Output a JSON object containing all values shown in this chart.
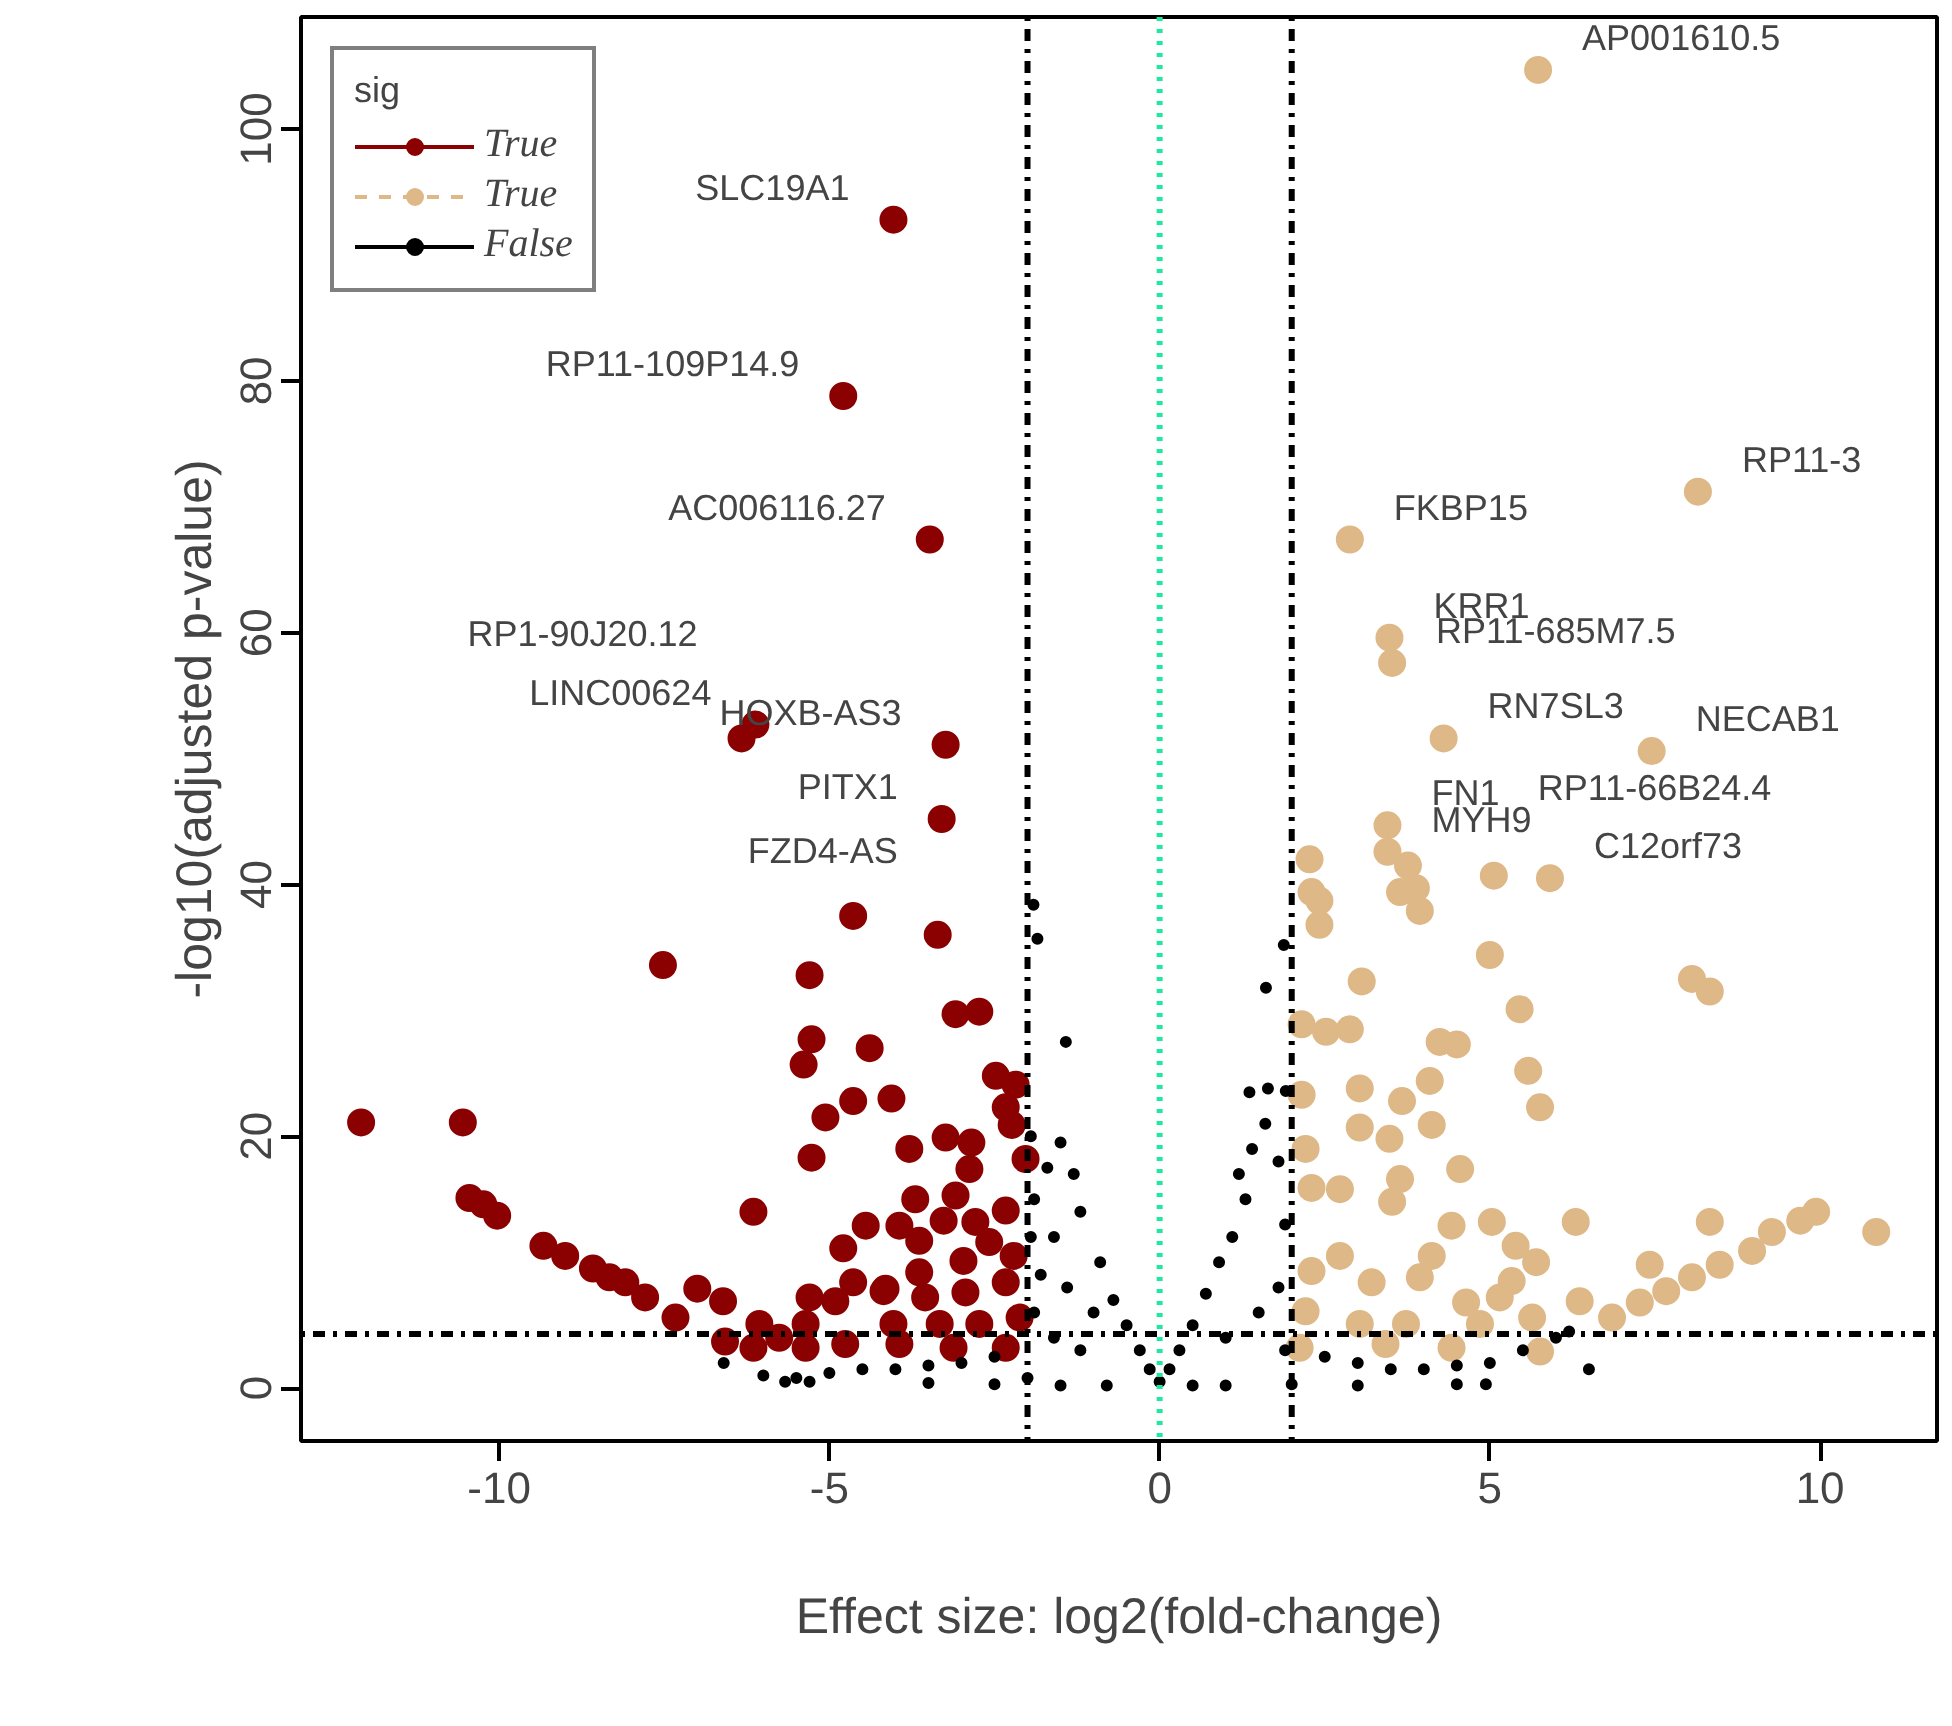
{
  "chart_data": {
    "type": "scatter",
    "xlabel": "Effect size: log2(fold-change)",
    "ylabel": "-log10(adjusted p-value)",
    "legend_title": "sig",
    "legend": "top left",
    "grid": false,
    "marker": "circle",
    "xlim": [
      -13,
      11.77
    ],
    "ylim": [
      -4.2,
      108.9
    ],
    "xticks": [
      -10,
      -5,
      0,
      5,
      10
    ],
    "yticks": [
      0,
      20,
      40,
      60,
      80,
      100
    ],
    "series": [
      {
        "name": "True",
        "color": "#8b0000",
        "line_style": "solid",
        "x": [
          -4.03,
          -4.79,
          -3.48,
          -6.33,
          -6.12,
          -3.24,
          -3.3,
          -12.09,
          -10.55,
          -10.45,
          -10.24,
          -10.03,
          -9.33,
          -9.0,
          -8.58,
          -8.33,
          -8.09,
          -7.79,
          -7.52,
          -7.33,
          -7.0,
          -6.61,
          -6.15,
          -6.06,
          -6.58,
          -5.76,
          -5.3,
          -5.27,
          -5.39,
          -5.27,
          -5.06,
          -4.64,
          -4.39,
          -4.64,
          -4.06,
          -4.79,
          -4.45,
          -5.3,
          -4.91,
          -4.64,
          -4.15,
          -5.36,
          -3.36,
          -3.09,
          -2.73,
          -2.48,
          -2.18,
          -2.33,
          -2.24,
          -3.24,
          -2.85,
          -3.79,
          -2.03,
          -2.88,
          -3.09,
          -3.7,
          -3.27,
          -2.33,
          -3.94,
          -3.64,
          -2.79,
          -2.58,
          -2.97,
          -3.64,
          -2.21,
          -3.55,
          -2.94,
          -2.33,
          -4.18,
          -4.03,
          -3.33,
          -2.73,
          -2.12,
          -2.33,
          -3.12,
          -3.94,
          -4.76,
          -6.15,
          -5.36
        ],
        "values": [
          92.8,
          78.8,
          67.4,
          51.6,
          52.7,
          51.1,
          45.2,
          21.1,
          21.1,
          15.1,
          14.6,
          13.7,
          11.3,
          10.5,
          9.5,
          8.8,
          8.4,
          7.2,
          33.6,
          5.6,
          7.9,
          6.9,
          14.0,
          5.1,
          3.7,
          4.0,
          32.8,
          27.7,
          25.7,
          18.3,
          21.5,
          37.5,
          27.0,
          22.8,
          23.0,
          11.1,
          12.9,
          7.2,
          6.9,
          8.4,
          7.9,
          5.1,
          36.0,
          29.7,
          29.9,
          24.8,
          24.1,
          22.3,
          20.9,
          19.9,
          19.5,
          19.0,
          18.2,
          17.4,
          15.3,
          15.0,
          13.3,
          14.1,
          12.9,
          11.7,
          13.2,
          11.6,
          10.1,
          9.2,
          10.5,
          7.2,
          7.6,
          8.4,
          7.7,
          5.1,
          5.1,
          5.1,
          5.6,
          3.2,
          3.2,
          3.5,
          3.5,
          3.2,
          3.2
        ]
      },
      {
        "name": "True",
        "color": "#deb887",
        "line_style": "dashed",
        "x": [
          5.73,
          8.15,
          2.88,
          3.48,
          3.52,
          4.3,
          7.45,
          3.45,
          3.45,
          3.76,
          3.88,
          5.06,
          2.27,
          2.3,
          2.42,
          2.42,
          3.64,
          3.94,
          5.91,
          5.0,
          3.06,
          5.45,
          8.06,
          8.33,
          2.15,
          2.52,
          2.88,
          4.24,
          4.5,
          5.58,
          5.76,
          4.09,
          3.03,
          2.15,
          3.67,
          3.03,
          4.12,
          3.48,
          2.21,
          4.55,
          3.64,
          2.3,
          2.73,
          3.52,
          5.03,
          6.3,
          8.33,
          4.42,
          10.85,
          9.94,
          9.7,
          9.27,
          8.97,
          8.48,
          8.06,
          7.67,
          7.27,
          6.85,
          7.42,
          6.36,
          5.64,
          5.7,
          5.39,
          5.33,
          5.15,
          4.64,
          4.12,
          3.94,
          3.21,
          2.73,
          2.3,
          2.21,
          3.03,
          3.73,
          4.85,
          2.12,
          3.42,
          4.42,
          5.76
        ],
        "values": [
          104.7,
          71.2,
          67.4,
          59.6,
          57.6,
          51.6,
          50.6,
          44.7,
          42.6,
          41.5,
          39.7,
          40.7,
          42.0,
          39.4,
          38.7,
          36.8,
          39.4,
          37.9,
          40.5,
          34.4,
          32.3,
          30.1,
          32.5,
          31.5,
          28.9,
          28.3,
          28.5,
          27.5,
          27.3,
          25.2,
          22.3,
          24.4,
          23.8,
          23.3,
          22.8,
          20.7,
          20.9,
          19.8,
          19.0,
          17.4,
          16.6,
          15.9,
          15.8,
          14.8,
          13.2,
          13.2,
          13.2,
          12.9,
          12.4,
          14.0,
          13.3,
          12.4,
          10.9,
          9.8,
          8.8,
          7.7,
          6.8,
          5.6,
          9.8,
          6.9,
          5.6,
          10.0,
          11.3,
          8.5,
          7.2,
          6.8,
          10.5,
          8.8,
          8.4,
          10.5,
          9.3,
          6.1,
          5.1,
          5.1,
          5.1,
          3.2,
          3.5,
          3.2,
          2.9
        ]
      },
      {
        "name": "False",
        "color": "#000000",
        "line_style": "solid",
        "x": [
          -1.91,
          -1.85,
          -1.42,
          -1.5,
          -1.3,
          -1.7,
          -1.2,
          -0.9,
          -1.6,
          -1.9,
          -0.7,
          -0.5,
          -0.3,
          -0.15,
          0,
          -1.0,
          -1.4,
          -1.8,
          -1.95,
          -1.95,
          -1.2,
          -1.6,
          -1.9,
          -2.5,
          -3,
          -3.5,
          -4,
          -4.5,
          -5,
          -5.5,
          -5.67,
          -6,
          -6.6,
          -5.3,
          -2.5,
          -3.5,
          -1.5,
          -0.8,
          -2,
          0.15,
          0.3,
          0.5,
          0.7,
          0.9,
          1.1,
          1.3,
          1.2,
          1.4,
          1.6,
          1.36,
          1.64,
          1.91,
          1.61,
          1.88,
          1.8,
          1.9,
          1.0,
          1.5,
          1.8,
          1.9,
          2.5,
          3,
          3.5,
          4,
          4.5,
          5,
          5.5,
          6,
          6.2,
          4.94,
          4.5,
          3,
          2,
          1,
          0.5,
          6.5
        ],
        "values": [
          38.4,
          35.7,
          27.5,
          19.5,
          17,
          17.5,
          14,
          10,
          12,
          15,
          7,
          5,
          3,
          1.5,
          0.5,
          6,
          8,
          9,
          20,
          12,
          3,
          4,
          6,
          2.5,
          2,
          1.8,
          1.5,
          1.5,
          1.2,
          0.8,
          0.5,
          1,
          2.0,
          0.5,
          0.3,
          0.4,
          0.2,
          0.2,
          0.8,
          1.5,
          3,
          5,
          7.5,
          10,
          12,
          15,
          17,
          19,
          21,
          23.5,
          23.8,
          23.6,
          31.8,
          35.2,
          18,
          13,
          4,
          6,
          8,
          3,
          2.5,
          2,
          1.5,
          1.5,
          1.8,
          2,
          3,
          4,
          4.5,
          0.3,
          0.3,
          0.2,
          0.3,
          0.2,
          0.2,
          1.5
        ]
      }
    ],
    "ref_lines": [
      {
        "axis": "x",
        "value": -2,
        "color": "#000000",
        "line_style": "dashdot"
      },
      {
        "axis": "x",
        "value": 2,
        "color": "#000000",
        "line_style": "dashdot"
      },
      {
        "axis": "x",
        "value": 0,
        "color": "#1de9a0",
        "line_style": "dotted"
      },
      {
        "axis": "y",
        "value": 4.3,
        "color": "#000000",
        "line_style": "dashdot"
      }
    ],
    "annotations": [
      {
        "text": "SLC19A1",
        "x": -4.03,
        "y": 92.8
      },
      {
        "text": "RP11-109P14.9",
        "x": -4.79,
        "y": 78.8
      },
      {
        "text": "AC006116.27",
        "x": -3.48,
        "y": 67.4
      },
      {
        "text": "RP1-90J20.12",
        "x": -6.33,
        "y": 51.6
      },
      {
        "text": "LINC00624",
        "x": -6.12,
        "y": 52.7
      },
      {
        "text": "HOXB-AS3",
        "x": -3.24,
        "y": 51.1
      },
      {
        "text": "PITX1",
        "x": -3.3,
        "y": 45.2
      },
      {
        "text": "FZD4-AS",
        "x": -3.3,
        "y": 45.2
      },
      {
        "text": "AP001610.5",
        "x": 5.73,
        "y": 104.7
      },
      {
        "text": "RP11-3",
        "x": 8.15,
        "y": 71.2
      },
      {
        "text": "FKBP15",
        "x": 2.88,
        "y": 67.4
      },
      {
        "text": "KRR1",
        "x": 3.48,
        "y": 59.6
      },
      {
        "text": "RP11-685M7.5",
        "x": 3.52,
        "y": 57.6
      },
      {
        "text": "RN7SL3",
        "x": 4.3,
        "y": 51.6
      },
      {
        "text": "NECAB1",
        "x": 7.45,
        "y": 50.6
      },
      {
        "text": "RP11-66B24.4",
        "x": 5.06,
        "y": 40.7
      },
      {
        "text": "FN1",
        "x": 3.45,
        "y": 44.7
      },
      {
        "text": "MYH9",
        "x": 3.45,
        "y": 42.6
      },
      {
        "text": "C12orf73",
        "x": 5.91,
        "y": 40.5
      }
    ]
  }
}
